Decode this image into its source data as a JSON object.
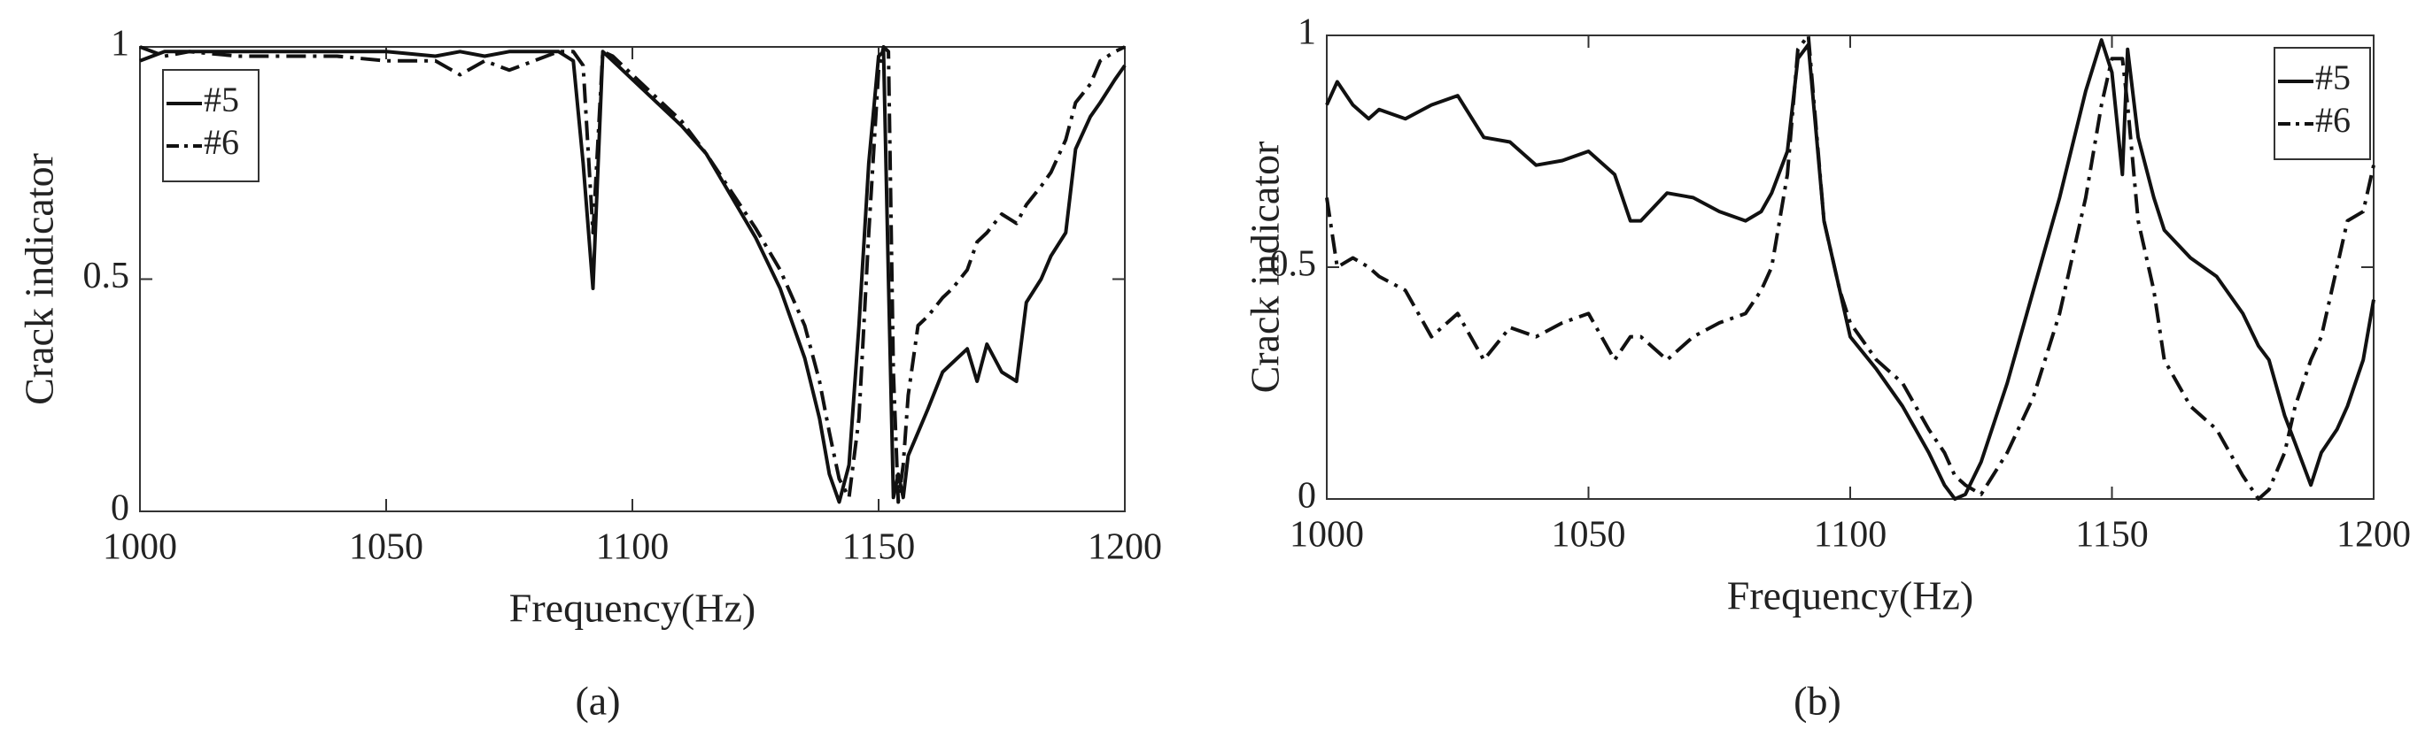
{
  "chart_data": [
    {
      "type": "line",
      "caption": "(a)",
      "xlabel": "Frequency(Hz)",
      "ylabel": "Crack indicator",
      "xlim": [
        1000,
        1200
      ],
      "ylim": [
        0,
        1
      ],
      "xticks": [
        1000,
        1050,
        1100,
        1150,
        1200
      ],
      "yticks": [
        0,
        0.5,
        1
      ],
      "legend": "upper-left",
      "x": [
        1000,
        1005,
        1010,
        1020,
        1030,
        1040,
        1050,
        1060,
        1065,
        1070,
        1075,
        1080,
        1085,
        1088,
        1090,
        1092,
        1094,
        1096,
        1100,
        1105,
        1110,
        1115,
        1120,
        1125,
        1130,
        1135,
        1138,
        1140,
        1142,
        1144,
        1146,
        1148,
        1150,
        1151,
        1152,
        1153,
        1154,
        1155,
        1156,
        1158,
        1160,
        1163,
        1165,
        1168,
        1170,
        1172,
        1175,
        1178,
        1180,
        1183,
        1185,
        1188,
        1190,
        1193,
        1195,
        1198,
        1200
      ],
      "series": [
        {
          "name": "#5",
          "color": "#111111",
          "dash": "solid",
          "values": [
            0.97,
            0.99,
            0.99,
            0.99,
            0.99,
            0.99,
            0.99,
            0.98,
            0.99,
            0.98,
            0.99,
            0.99,
            0.99,
            0.97,
            0.75,
            0.48,
            0.99,
            0.97,
            0.93,
            0.88,
            0.83,
            0.77,
            0.68,
            0.59,
            0.48,
            0.33,
            0.2,
            0.08,
            0.02,
            0.1,
            0.4,
            0.75,
            0.98,
            0.99,
            0.5,
            0.03,
            0.08,
            0.03,
            0.12,
            0.17,
            0.22,
            0.3,
            0.32,
            0.35,
            0.28,
            0.36,
            0.3,
            0.28,
            0.45,
            0.5,
            0.55,
            0.6,
            0.78,
            0.85,
            0.88,
            0.93,
            0.96
          ]
        },
        {
          "name": "#6",
          "color": "#111111",
          "dash": "dashdot",
          "values": [
            1,
            0.98,
            0.99,
            0.98,
            0.98,
            0.98,
            0.97,
            0.97,
            0.94,
            0.97,
            0.95,
            0.97,
            0.99,
            0.99,
            0.96,
            0.6,
            0.99,
            0.98,
            0.94,
            0.89,
            0.84,
            0.77,
            0.69,
            0.61,
            0.52,
            0.4,
            0.28,
            0.17,
            0.07,
            0.03,
            0.2,
            0.6,
            0.95,
            1,
            0.99,
            0.3,
            0.02,
            0.1,
            0.25,
            0.4,
            0.42,
            0.46,
            0.48,
            0.52,
            0.58,
            0.6,
            0.64,
            0.62,
            0.66,
            0.7,
            0.73,
            0.8,
            0.88,
            0.92,
            0.97,
            0.99,
            1
          ]
        }
      ]
    },
    {
      "type": "line",
      "caption": "(b)",
      "xlabel": "Frequency(Hz)",
      "ylabel": "Crack indicator",
      "xlim": [
        1000,
        1200
      ],
      "ylim": [
        0,
        1
      ],
      "xticks": [
        1000,
        1050,
        1100,
        1150,
        1200
      ],
      "yticks": [
        0,
        0.5,
        1
      ],
      "legend": "upper-right",
      "x": [
        1000,
        1002,
        1005,
        1008,
        1010,
        1015,
        1020,
        1025,
        1030,
        1035,
        1040,
        1045,
        1050,
        1055,
        1058,
        1060,
        1065,
        1070,
        1075,
        1080,
        1083,
        1085,
        1088,
        1090,
        1092,
        1095,
        1098,
        1100,
        1105,
        1110,
        1115,
        1118,
        1120,
        1122,
        1125,
        1130,
        1135,
        1140,
        1145,
        1148,
        1150,
        1152,
        1153,
        1155,
        1158,
        1160,
        1165,
        1170,
        1175,
        1178,
        1180,
        1183,
        1185,
        1188,
        1190,
        1193,
        1195,
        1198,
        1200
      ],
      "series": [
        {
          "name": "#5",
          "color": "#111111",
          "dash": "solid",
          "values": [
            0.85,
            0.9,
            0.85,
            0.82,
            0.84,
            0.82,
            0.85,
            0.87,
            0.78,
            0.77,
            0.72,
            0.73,
            0.75,
            0.7,
            0.6,
            0.6,
            0.66,
            0.65,
            0.62,
            0.6,
            0.62,
            0.66,
            0.75,
            0.95,
            0.98,
            0.6,
            0.45,
            0.35,
            0.28,
            0.2,
            0.1,
            0.03,
            0,
            0.01,
            0.08,
            0.25,
            0.45,
            0.65,
            0.88,
            0.99,
            0.92,
            0.7,
            0.97,
            0.78,
            0.65,
            0.58,
            0.52,
            0.48,
            0.4,
            0.33,
            0.3,
            0.18,
            0.12,
            0.03,
            0.1,
            0.15,
            0.2,
            0.3,
            0.43
          ]
        },
        {
          "name": "#6",
          "color": "#111111",
          "dash": "dashdot",
          "values": [
            0.65,
            0.5,
            0.52,
            0.5,
            0.48,
            0.45,
            0.35,
            0.4,
            0.3,
            0.37,
            0.35,
            0.38,
            0.4,
            0.3,
            0.35,
            0.35,
            0.3,
            0.35,
            0.38,
            0.4,
            0.45,
            0.5,
            0.7,
            0.97,
            1,
            0.6,
            0.45,
            0.38,
            0.3,
            0.25,
            0.15,
            0.1,
            0.05,
            0.03,
            0.01,
            0.1,
            0.22,
            0.4,
            0.65,
            0.85,
            0.95,
            0.95,
            0.85,
            0.6,
            0.45,
            0.3,
            0.2,
            0.15,
            0.05,
            0,
            0.02,
            0.1,
            0.2,
            0.3,
            0.35,
            0.5,
            0.6,
            0.62,
            0.72
          ]
        }
      ]
    }
  ]
}
